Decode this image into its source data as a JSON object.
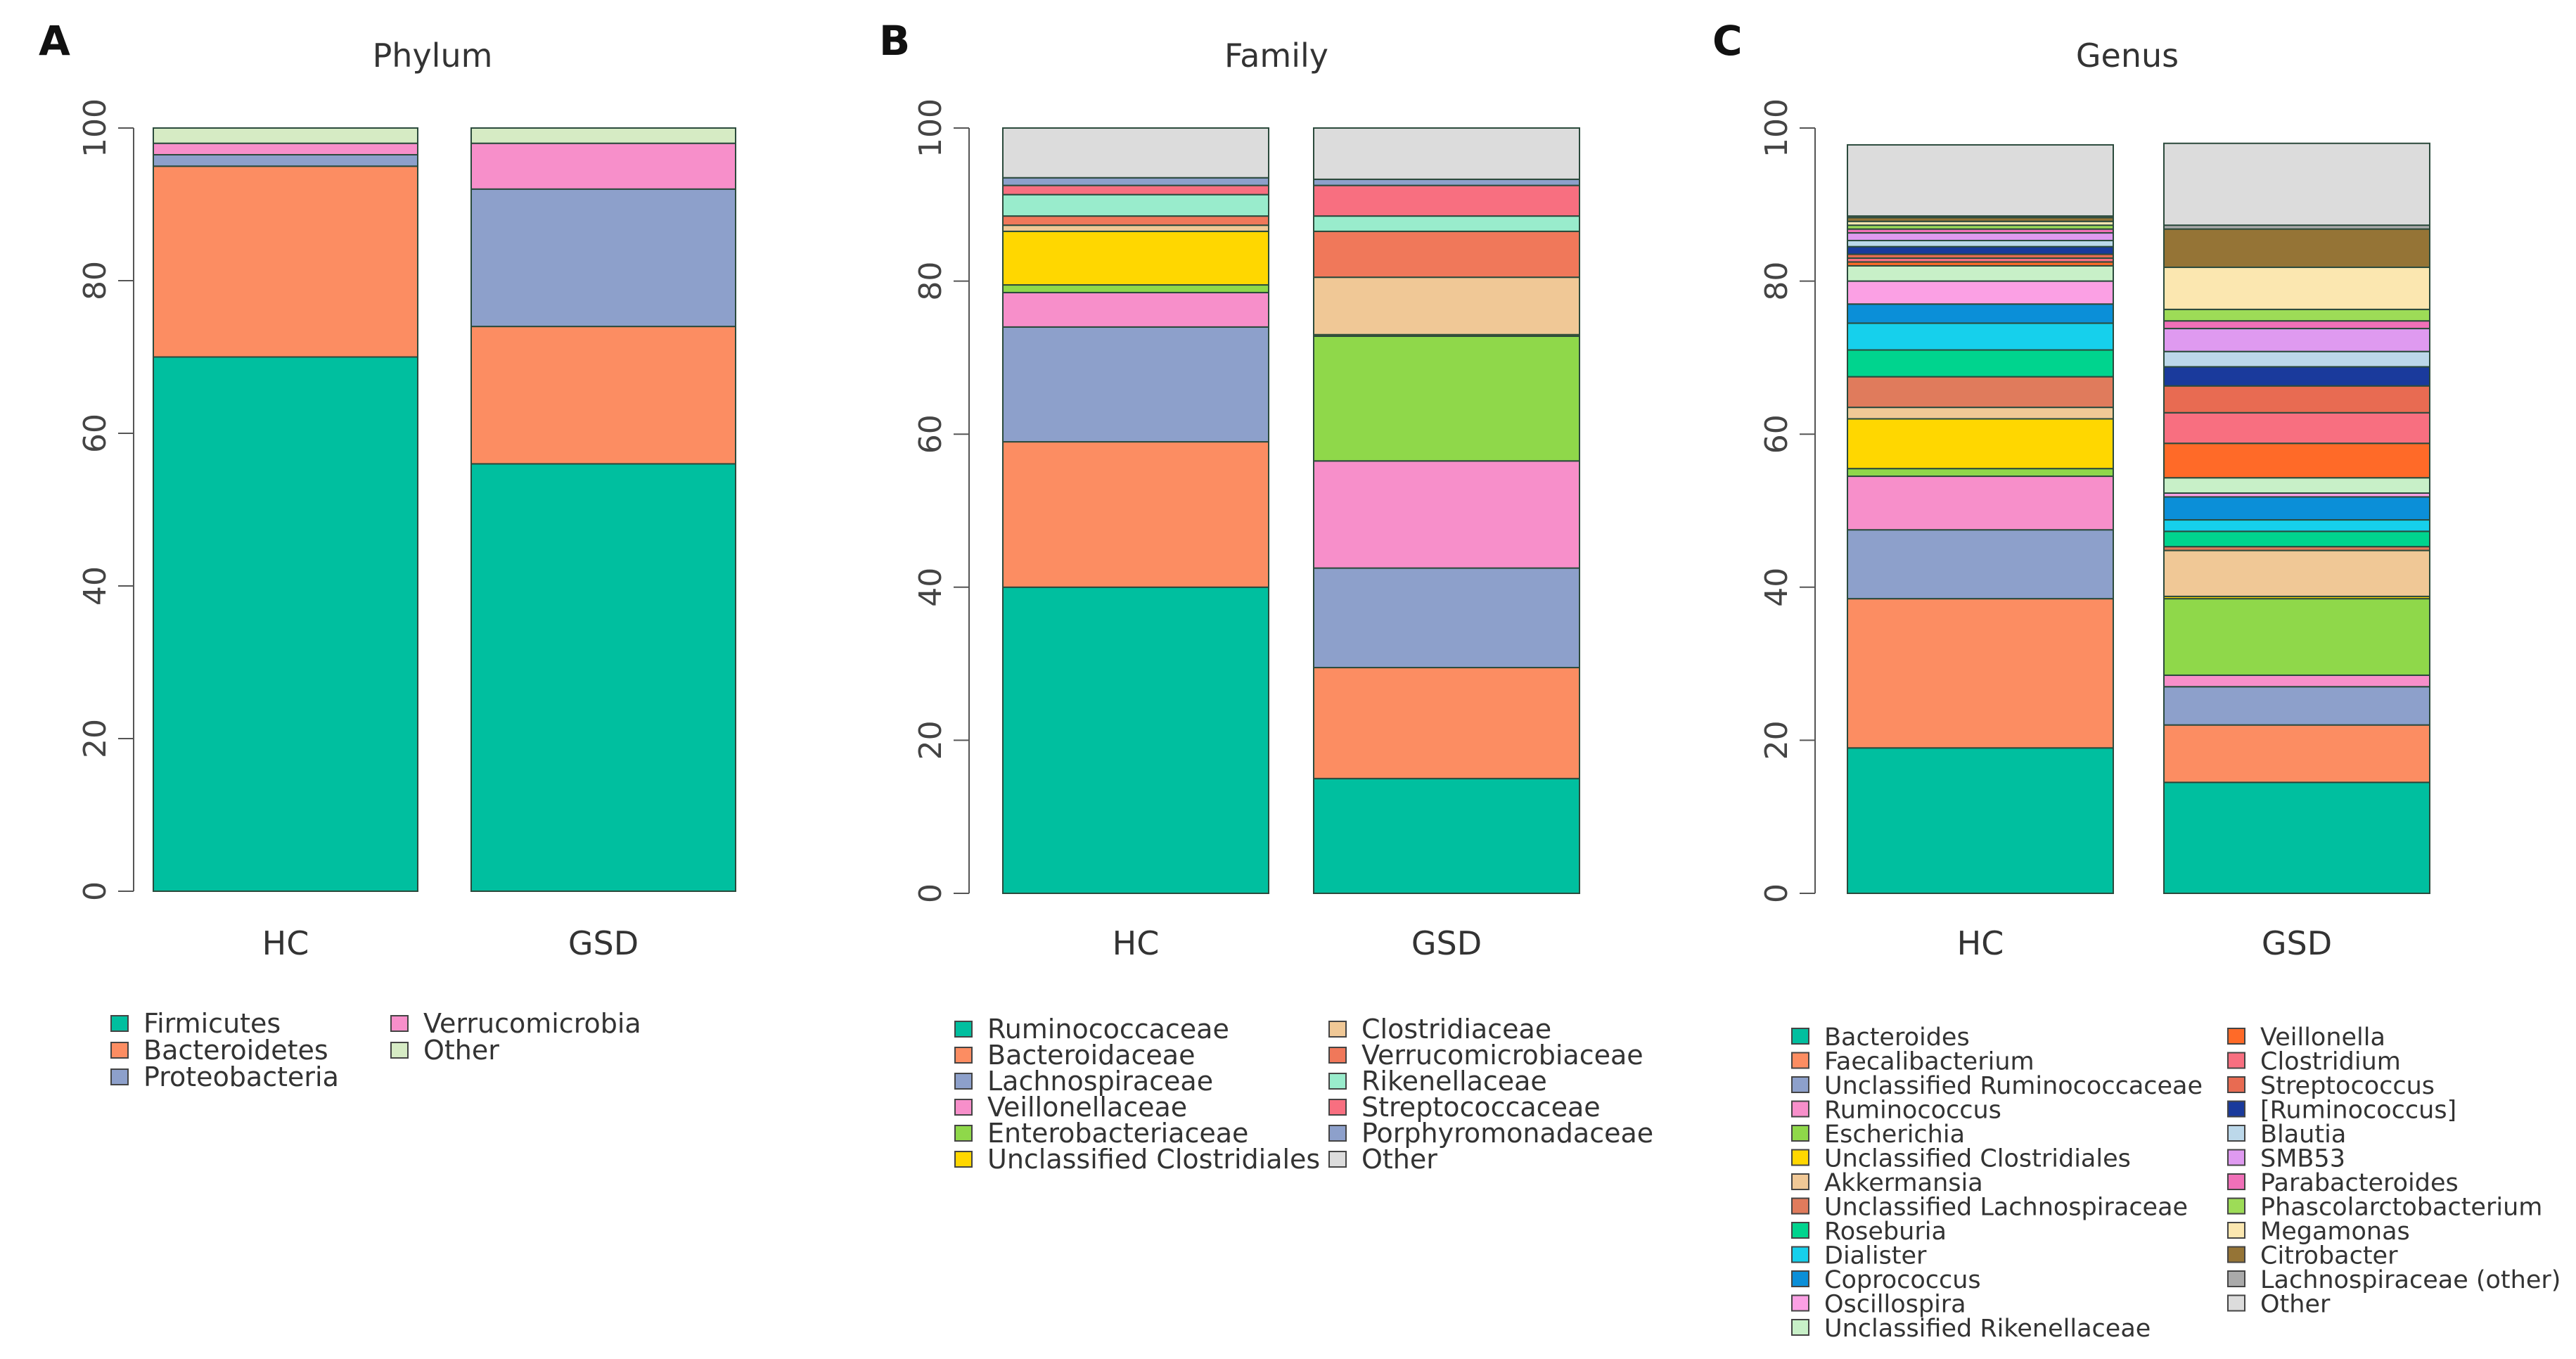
{
  "chart_data": [
    {
      "type": "bar",
      "stacked": true,
      "panel_label": "A",
      "title": "Phylum",
      "xlabel": "",
      "ylabel": "",
      "ylim": [
        0,
        100
      ],
      "yticks": [
        "0",
        "20",
        "40",
        "60",
        "80",
        "100"
      ],
      "categories": [
        "HC",
        "GSD"
      ],
      "series": [
        {
          "name": "Firmicutes",
          "color": "#00bf9f",
          "values": [
            70,
            56
          ]
        },
        {
          "name": "Bacteroidetes",
          "color": "#fc8d62",
          "values": [
            25,
            18
          ]
        },
        {
          "name": "Proteobacteria",
          "color": "#8da0cb",
          "values": [
            1.5,
            18
          ]
        },
        {
          "name": "Verrucomicrobia",
          "color": "#f78fca",
          "values": [
            1.5,
            6
          ]
        },
        {
          "name": "Other",
          "color": "#d6ebc4",
          "values": [
            2,
            2
          ]
        }
      ],
      "legend_order": [
        "Firmicutes",
        "Verrucomicrobia",
        "Bacteroidetes",
        "Other",
        "Proteobacteria"
      ],
      "legend_columns": 2,
      "legend_position": "bottom"
    },
    {
      "type": "bar",
      "stacked": true,
      "panel_label": "B",
      "title": "Family",
      "xlabel": "",
      "ylabel": "",
      "ylim": [
        0,
        100
      ],
      "yticks": [
        "0",
        "20",
        "40",
        "60",
        "80",
        "100"
      ],
      "categories": [
        "HC",
        "GSD"
      ],
      "series": [
        {
          "name": "Ruminococcaceae",
          "color": "#00bf9f",
          "values": [
            40,
            15
          ]
        },
        {
          "name": "Bacteroidaceae",
          "color": "#fc8d62",
          "values": [
            19,
            14.5
          ]
        },
        {
          "name": "Lachnospiraceae",
          "color": "#8da0cb",
          "values": [
            15,
            13
          ]
        },
        {
          "name": "Veillonellaceae",
          "color": "#f78fca",
          "values": [
            4.5,
            14
          ]
        },
        {
          "name": "Enterobacteriaceae",
          "color": "#8fd84a",
          "values": [
            1,
            16.3
          ]
        },
        {
          "name": "Unclassified Clostridiales",
          "color": "#ffd700",
          "values": [
            7,
            0.2
          ]
        },
        {
          "name": "Clostridiaceae",
          "color": "#f0c896",
          "values": [
            0.8,
            7.5
          ]
        },
        {
          "name": "Verrucomicrobiaceae",
          "color": "#f0785a",
          "values": [
            1.2,
            6
          ]
        },
        {
          "name": "Rikenellaceae",
          "color": "#99eccc",
          "values": [
            2.8,
            2
          ]
        },
        {
          "name": "Streptococcaceae",
          "color": "#f86f80",
          "values": [
            1.2,
            4
          ]
        },
        {
          "name": "Porphyromonadaceae",
          "color": "#8da0cb",
          "values": [
            1,
            0.8
          ]
        },
        {
          "name": "Other",
          "color": "#dcdcdc",
          "values": [
            6.5,
            6.7
          ]
        }
      ],
      "legend_order": [
        "Ruminococcaceae",
        "Clostridiaceae",
        "Bacteroidaceae",
        "Verrucomicrobiaceae",
        "Lachnospiraceae",
        "Rikenellaceae",
        "Veillonellaceae",
        "Streptococcaceae",
        "Enterobacteriaceae",
        "Porphyromonadaceae",
        "Unclassified Clostridiales",
        "Other"
      ],
      "legend_columns": 2,
      "legend_position": "bottom"
    },
    {
      "type": "bar",
      "stacked": true,
      "panel_label": "C",
      "title": "Genus",
      "xlabel": "",
      "ylabel": "",
      "ylim": [
        0,
        100
      ],
      "yticks": [
        "0",
        "20",
        "40",
        "60",
        "80",
        "100"
      ],
      "categories": [
        "HC",
        "GSD"
      ],
      "series": [
        {
          "name": "Bacteroides",
          "color": "#00bf9f",
          "values": [
            19,
            14.5
          ]
        },
        {
          "name": "Faecalibacterium",
          "color": "#fc8d62",
          "values": [
            19.5,
            7.5
          ]
        },
        {
          "name": "Unclassified Ruminococcaceae",
          "color": "#8da0cb",
          "values": [
            9,
            5
          ]
        },
        {
          "name": "Ruminococcus",
          "color": "#f78fca",
          "values": [
            7,
            1.5
          ]
        },
        {
          "name": "Escherichia",
          "color": "#8fd84a",
          "values": [
            1,
            10
          ]
        },
        {
          "name": "Unclassified Clostridiales",
          "color": "#ffd700",
          "values": [
            6.5,
            0.3
          ]
        },
        {
          "name": "Akkermansia",
          "color": "#f0c896",
          "values": [
            1.5,
            6
          ]
        },
        {
          "name": "Unclassified Lachnospiraceae",
          "color": "#e07b5c",
          "values": [
            4,
            0.5
          ]
        },
        {
          "name": "Roseburia",
          "color": "#00d48e",
          "values": [
            3.5,
            2
          ]
        },
        {
          "name": "Dialister",
          "color": "#16d0ec",
          "values": [
            3.5,
            1.5
          ]
        },
        {
          "name": "Coprococcus",
          "color": "#0b8fd8",
          "values": [
            2.5,
            3
          ]
        },
        {
          "name": "Oscillospira",
          "color": "#fba0e4",
          "values": [
            3,
            0.5
          ]
        },
        {
          "name": "Unclassified Rikenellaceae",
          "color": "#c8f0c8",
          "values": [
            2,
            2
          ]
        },
        {
          "name": "Veillonella",
          "color": "#ff6a28",
          "values": [
            0.5,
            4.5
          ]
        },
        {
          "name": "Clostridium",
          "color": "#f86f80",
          "values": [
            0.5,
            4
          ]
        },
        {
          "name": "Streptococcus",
          "color": "#e86b52",
          "values": [
            0.5,
            3.5
          ]
        },
        {
          "name": "[Ruminococcus]",
          "color": "#1a3a9c",
          "values": [
            1,
            2.5
          ]
        },
        {
          "name": "Blautia",
          "color": "#bcd8ea",
          "values": [
            0.8,
            2
          ]
        },
        {
          "name": "SMB53",
          "color": "#df9af0",
          "values": [
            1,
            3
          ]
        },
        {
          "name": "Parabacteroides",
          "color": "#f070b8",
          "values": [
            0.5,
            1
          ]
        },
        {
          "name": "Phascolarctobacterium",
          "color": "#9ddc57",
          "values": [
            0.5,
            1.5
          ]
        },
        {
          "name": "Megamonas",
          "color": "#fbe7b0",
          "values": [
            0.5,
            5.5
          ]
        },
        {
          "name": "Citrobacter",
          "color": "#957436",
          "values": [
            0.5,
            5
          ]
        },
        {
          "name": "Lachnospiraceae (other)",
          "color": "#aaaaaa",
          "values": [
            0.2,
            0.5
          ]
        },
        {
          "name": "Other",
          "color": "#dcdcdc",
          "values": [
            9.3,
            10.7
          ]
        }
      ],
      "legend_order": [
        "Bacteroides",
        "Veillonella",
        "Faecalibacterium",
        "Clostridium",
        "Unclassified Ruminococcaceae",
        "Streptococcus",
        "Ruminococcus",
        "[Ruminococcus]",
        "Escherichia",
        "Blautia",
        "Unclassified Clostridiales",
        "SMB53",
        "Akkermansia",
        "Parabacteroides",
        "Unclassified Lachnospiraceae",
        "Phascolarctobacterium",
        "Roseburia",
        "Megamonas",
        "Dialister",
        "Citrobacter",
        "Coprococcus",
        "Lachnospiraceae (other)",
        "Oscillospira",
        "Other",
        "Unclassified Rikenellaceae"
      ],
      "legend_columns": 2,
      "legend_position": "bottom"
    }
  ]
}
